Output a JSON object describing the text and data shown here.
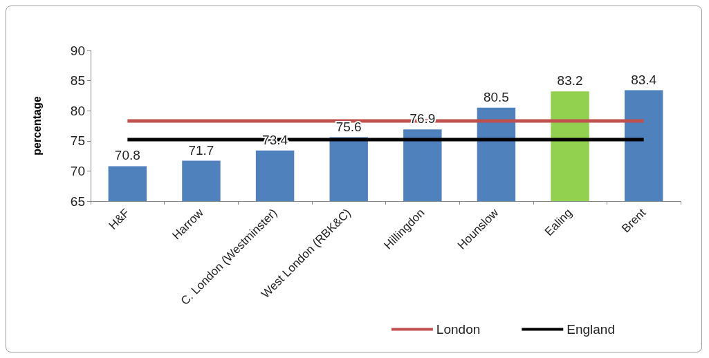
{
  "chart_data": {
    "type": "bar",
    "ylabel": "percentage",
    "categories": [
      "H&F",
      "Harrow",
      "C. London (Westminster)",
      "West London (RBK&C)",
      "Hillingdon",
      "Hounslow",
      "Ealing",
      "Brent"
    ],
    "ylim": [
      65,
      90
    ],
    "yticks": [
      65,
      70,
      75,
      80,
      85,
      90
    ],
    "grid": false,
    "legend": "bottom right",
    "marker": "none",
    "line_style": "solid",
    "series": [
      {
        "colors": [
          "#4f81bd",
          "#4f81bd",
          "#4f81bd",
          "#4f81bd",
          "#4f81bd",
          "#4f81bd",
          "#92d050",
          "#4f81bd"
        ],
        "values": [
          70.8,
          71.7,
          73.4,
          75.6,
          76.9,
          80.5,
          83.2,
          83.4
        ],
        "value_labels": [
          "70.8",
          "71.7",
          "73.4",
          "75.6",
          "76.9",
          "80.5",
          "83.2",
          "83.4"
        ]
      },
      {
        "type": "line",
        "name": "London",
        "color": "#c0504d",
        "values": [
          78.3,
          78.3,
          78.3,
          78.3,
          78.3,
          78.3,
          78.3,
          78.3
        ]
      },
      {
        "type": "line",
        "name": "England",
        "color": "#000000",
        "values": [
          75.2,
          75.2,
          75.2,
          75.2,
          75.2,
          75.2,
          75.2,
          75.2
        ]
      }
    ]
  }
}
